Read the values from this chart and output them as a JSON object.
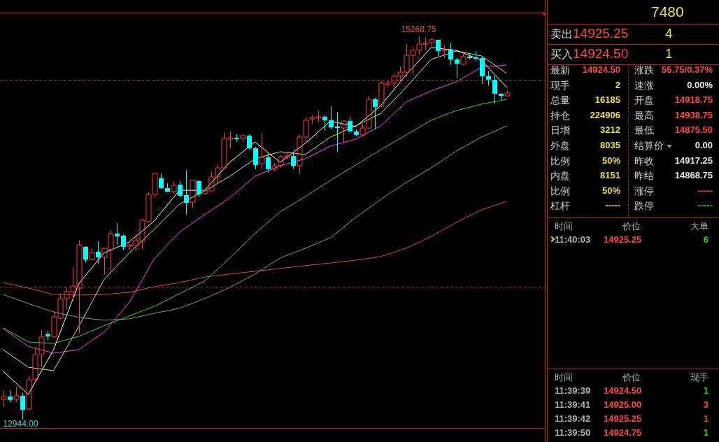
{
  "chart_data": {
    "type": "candlestick",
    "tick_labels": false,
    "categories": [
      null,
      null,
      null,
      null,
      null,
      null,
      null,
      null,
      null,
      null,
      null,
      null,
      null,
      null,
      null,
      null,
      null,
      null,
      null,
      null,
      null,
      null,
      null,
      null,
      null,
      null,
      null,
      null,
      null,
      null,
      null,
      null,
      null,
      null,
      null,
      null,
      null,
      null,
      null,
      null,
      null,
      null,
      null,
      null,
      null,
      null,
      null,
      null,
      null,
      null,
      null,
      null,
      null,
      null,
      null,
      null,
      null,
      null,
      null,
      null,
      null,
      null,
      null,
      null,
      null,
      null,
      null,
      null,
      null,
      null,
      null,
      null,
      null,
      null,
      null,
      null,
      null,
      null,
      null,
      null,
      null
    ],
    "ohlc": [
      [
        13067,
        13122,
        13020,
        13084
      ],
      [
        13084,
        13122,
        13050,
        13063
      ],
      [
        13067,
        13143,
        13050,
        13088
      ],
      [
        13088,
        13105,
        12944,
        13003
      ],
      [
        13008,
        13211,
        12999,
        13186
      ],
      [
        13186,
        13377,
        13169,
        13338
      ],
      [
        13338,
        13487,
        13262,
        13445
      ],
      [
        13462,
        13483,
        13423,
        13449
      ],
      [
        13445,
        13602,
        13440,
        13568
      ],
      [
        13559,
        13708,
        13551,
        13678
      ],
      [
        13678,
        13746,
        13610,
        13720
      ],
      [
        13720,
        13869,
        13665,
        13754
      ],
      [
        13741,
        14030,
        13466,
        14004
      ],
      [
        13992,
        13996,
        13898,
        13915
      ],
      [
        13915,
        13983,
        13911,
        13958
      ],
      [
        13962,
        14026,
        13890,
        13928
      ],
      [
        13928,
        13983,
        13822,
        13983
      ],
      [
        13975,
        14094,
        13843,
        14072
      ],
      [
        14072,
        14136,
        14004,
        14055
      ],
      [
        14060,
        14068,
        13971,
        13992
      ],
      [
        13996,
        14009,
        13975,
        14004
      ],
      [
        14000,
        14068,
        13971,
        14030
      ],
      [
        14026,
        14162,
        13975,
        14153
      ],
      [
        14145,
        14323,
        14140,
        14310
      ],
      [
        14310,
        14442,
        14289,
        14437
      ],
      [
        14408,
        14437,
        14344,
        14348
      ],
      [
        14348,
        14378,
        14323,
        14327
      ],
      [
        14327,
        14386,
        14315,
        14365
      ],
      [
        14369,
        14391,
        14293,
        14302
      ],
      [
        14306,
        14458,
        14187,
        14259
      ],
      [
        14263,
        14399,
        14229,
        14395
      ],
      [
        14391,
        14395,
        14293,
        14310
      ],
      [
        14315,
        14344,
        14310,
        14331
      ],
      [
        14331,
        14450,
        14331,
        14416
      ],
      [
        14416,
        14492,
        14374,
        14471
      ],
      [
        14471,
        14688,
        14463,
        14649
      ],
      [
        14645,
        14692,
        14590,
        14654
      ],
      [
        14654,
        14675,
        14628,
        14645
      ],
      [
        14649,
        14675,
        14628,
        14666
      ],
      [
        14666,
        14675,
        14581,
        14590
      ],
      [
        14590,
        14598,
        14463,
        14488
      ],
      [
        14497,
        14683,
        14463,
        14535
      ],
      [
        14535,
        14556,
        14442,
        14463
      ],
      [
        14463,
        14501,
        14450,
        14484
      ],
      [
        14484,
        14548,
        14471,
        14539
      ],
      [
        14535,
        14569,
        14522,
        14543
      ],
      [
        14543,
        14569,
        14467,
        14484
      ],
      [
        14484,
        14671,
        14434,
        14658
      ],
      [
        14658,
        14777,
        14628,
        14760
      ],
      [
        14768,
        14790,
        14738,
        14777
      ],
      [
        14777,
        14819,
        14747,
        14781
      ],
      [
        14781,
        14790,
        14696,
        14760
      ],
      [
        14760,
        14845,
        14705,
        14717
      ],
      [
        14722,
        14811,
        14569,
        14713
      ],
      [
        14713,
        14760,
        14628,
        14755
      ],
      [
        14755,
        14781,
        14684,
        14692
      ],
      [
        14692,
        14705,
        14662,
        14671
      ],
      [
        14671,
        14738,
        14662,
        14713
      ],
      [
        14713,
        14908,
        14705,
        14887
      ],
      [
        14887,
        14896,
        14705,
        14840
      ],
      [
        14845,
        14997,
        14840,
        14985
      ],
      [
        14976,
        15002,
        14959,
        14985
      ],
      [
        14985,
        15044,
        14959,
        15027
      ],
      [
        15027,
        15086,
        14989,
        15052
      ],
      [
        15052,
        15222,
        15023,
        15154
      ],
      [
        15154,
        15205,
        15035,
        15184
      ],
      [
        15184,
        15268.75,
        15158,
        15222
      ],
      [
        15222,
        15264,
        15184,
        15226
      ],
      [
        15231,
        15256,
        15209,
        15248
      ],
      [
        15248,
        15248,
        15150,
        15180
      ],
      [
        15184,
        15214,
        15137,
        15188
      ],
      [
        15188,
        15231,
        15095,
        15129
      ],
      [
        15129,
        15141,
        15014,
        15103
      ],
      [
        15099,
        15171,
        15095,
        15146
      ],
      [
        15146,
        15163,
        15129,
        15137
      ],
      [
        15141,
        15180,
        15120,
        15133
      ],
      [
        15137,
        15150,
        14980,
        15027
      ],
      [
        15027,
        15057,
        14968,
        15006
      ],
      [
        15006,
        15031,
        14862,
        14921
      ],
      [
        14921,
        14925,
        14883,
        14908
      ],
      [
        14908,
        14942,
        14908,
        14925
      ]
    ],
    "series": [
      {
        "type": "line",
        "color": "#ffffff",
        "values": [
          13237,
          null,
          null,
          null,
          13097,
          null,
          null,
          null,
          13368,
          null,
          null,
          null,
          13767,
          null,
          null,
          null,
          13954,
          null,
          null,
          null,
          14021,
          null,
          null,
          null,
          14149,
          null,
          null,
          null,
          14335,
          null,
          null,
          null,
          14335,
          null,
          null,
          null,
          14505,
          null,
          null,
          null,
          14628,
          null,
          null,
          null,
          14505,
          null,
          null,
          null,
          14620,
          null,
          null,
          null,
          14755,
          null,
          null,
          null,
          14721,
          null,
          null,
          null,
          14849,
          null,
          null,
          null,
          15035,
          null,
          null,
          null,
          15201,
          null,
          null,
          null,
          15184,
          null,
          null,
          null,
          15124,
          null,
          null,
          null,
          14959
        ]
      },
      {
        "type": "line",
        "color": "#e0e070",
        "values": [
          13368,
          null,
          null,
          null,
          13262,
          null,
          null,
          null,
          13241,
          null,
          null,
          null,
          13508,
          null,
          null,
          null,
          13792,
          null,
          null,
          null,
          13954,
          null,
          null,
          null,
          14098,
          null,
          null,
          null,
          14251,
          null,
          null,
          null,
          14331,
          null,
          null,
          null,
          14420,
          null,
          null,
          null,
          14526,
          null,
          null,
          null,
          14569,
          null,
          null,
          null,
          14552,
          null,
          null,
          null,
          14658,
          null,
          null,
          null,
          14726,
          null,
          null,
          null,
          14802,
          null,
          null,
          null,
          14959,
          null,
          null,
          null,
          15129,
          null,
          null,
          null,
          15180,
          null,
          null,
          null,
          15150,
          null,
          null,
          null,
          15044
        ]
      },
      {
        "type": "line",
        "color": "#ff40ff",
        "values": [
          13496,
          null,
          null,
          null,
          13389,
          null,
          null,
          null,
          13347,
          null,
          null,
          null,
          13368,
          null,
          null,
          null,
          13474,
          null,
          null,
          null,
          13652,
          null,
          null,
          null,
          13920,
          null,
          null,
          null,
          14081,
          null,
          null,
          null,
          14187,
          null,
          null,
          null,
          14289,
          null,
          null,
          null,
          14420,
          null,
          null,
          null,
          14484,
          null,
          null,
          null,
          14526,
          null,
          null,
          null,
          14603,
          null,
          null,
          null,
          14645,
          null,
          null,
          null,
          14726,
          null,
          null,
          null,
          14870,
          null,
          null,
          null,
          14938,
          null,
          null,
          null,
          14993,
          null,
          null,
          null,
          15082,
          null,
          null,
          null,
          15095
        ]
      },
      {
        "type": "line",
        "color": "#40d040",
        "values": [
          13500,
          null,
          null,
          null,
          13415,
          null,
          null,
          null,
          13406,
          null,
          null,
          null,
          13449,
          null,
          null,
          null,
          13513,
          null,
          null,
          null,
          13572,
          null,
          null,
          null,
          13631,
          null,
          null,
          null,
          13708,
          null,
          null,
          null,
          13784,
          null,
          null,
          null,
          13924,
          null,
          null,
          null,
          14072,
          null,
          null,
          null,
          14204,
          null,
          null,
          null,
          14297,
          null,
          null,
          null,
          14395,
          null,
          null,
          null,
          14488,
          null,
          null,
          null,
          14581,
          null,
          null,
          null,
          14671,
          null,
          null,
          null,
          14760,
          null,
          null,
          null,
          14819,
          null,
          null,
          null,
          14857,
          null,
          null,
          null,
          14887
        ]
      },
      {
        "type": "line",
        "color": "#909090",
        "values": [
          13703,
          null,
          null,
          null,
          13648,
          null,
          null,
          null,
          13597,
          null,
          null,
          null,
          13564,
          null,
          null,
          null,
          13547,
          null,
          null,
          null,
          13555,
          null,
          null,
          null,
          13589,
          null,
          null,
          null,
          13619,
          null,
          null,
          null,
          13678,
          null,
          null,
          null,
          13746,
          null,
          null,
          null,
          13827,
          null,
          null,
          null,
          13924,
          null,
          null,
          null,
          13983,
          null,
          null,
          null,
          14047,
          null,
          null,
          null,
          14170,
          null,
          null,
          null,
          14280,
          null,
          null,
          null,
          14382,
          null,
          null,
          null,
          14471,
          null,
          null,
          null,
          14573,
          null,
          null,
          null,
          14658,
          null,
          null,
          null,
          14726
        ]
      },
      {
        "type": "line",
        "color": "#e04848",
        "values": [
          13775,
          null,
          null,
          null,
          13742,
          null,
          null,
          null,
          13703,
          null,
          null,
          null,
          13699,
          null,
          null,
          null,
          13703,
          null,
          null,
          null,
          13716,
          null,
          null,
          null,
          13750,
          null,
          null,
          null,
          13775,
          null,
          null,
          null,
          13809,
          null,
          null,
          null,
          13827,
          null,
          null,
          null,
          13844,
          null,
          null,
          null,
          13861,
          null,
          null,
          null,
          13878,
          null,
          null,
          null,
          13894,
          null,
          null,
          null,
          13911,
          null,
          null,
          null,
          13933,
          null,
          null,
          null,
          13983,
          null,
          null,
          null,
          14055,
          null,
          null,
          null,
          14140,
          null,
          null,
          null,
          14217,
          null,
          null,
          null,
          14268
        ]
      }
    ],
    "ref_lines": [
      {
        "axis": "y",
        "value": 15000,
        "color": "#a03030",
        "line_style": "dashed"
      },
      {
        "axis": "y",
        "value": 13750,
        "color": "#a03030",
        "line_style": "dashed"
      }
    ],
    "annotations": [
      {
        "text": "15268.75",
        "y": 15268.75
      },
      {
        "text": "12944.00",
        "y": 12944
      },
      "7480",
      "卖出",
      "14925.25",
      "4",
      "买入",
      "14924.50",
      "1",
      "最新",
      "14924.50",
      "涨跌",
      "55.75/0.37%",
      "现手",
      "2",
      "速涨",
      "0.00%",
      "总量",
      "16185",
      "开盘",
      "14918.75",
      "持仓",
      "224906",
      "最高",
      "14938.75",
      "日增",
      "3212",
      "最低",
      "14875.50",
      "外盘",
      "8035",
      "结算价",
      "0.00",
      "比例",
      "50%",
      "昨收",
      "14917.25",
      "内盘",
      "8151",
      "昨结",
      "14868.75",
      "比例",
      "50%",
      "涨停",
      "-----",
      "杠杆",
      "-----",
      "跌停",
      "-----",
      "时间",
      "价位",
      "大单",
      "11:40:03",
      "14925.25",
      "6",
      "时间",
      "价位",
      "现手",
      "11:39:39",
      "14924.50",
      "1",
      "11:39:41",
      "14925.00",
      "3",
      "11:39:42",
      "14925.25",
      "1",
      "11:39:50",
      "14924.75",
      "1"
    ]
  }
}
